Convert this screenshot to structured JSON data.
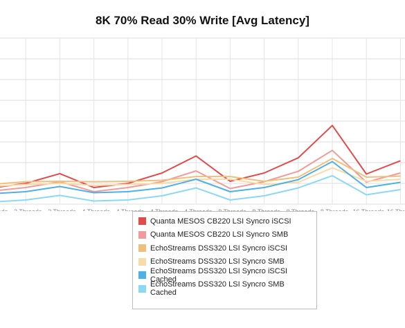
{
  "chart_data": {
    "type": "line",
    "title": "8K 70% Read 30% Write [Avg Latency]",
    "xlabel": "",
    "ylabel": "",
    "grid": true,
    "legend_position": "bottom",
    "categories": [
      [
        "1 Threads",
        "16 Queue"
      ],
      [
        "2 Threads",
        "8 Queue"
      ],
      [
        "2 Threads",
        "16 Queue"
      ],
      [
        "4 Threads",
        "2 Queue"
      ],
      [
        "4 Threads",
        "4 Queue"
      ],
      [
        "4 Threads",
        "8 Queue"
      ],
      [
        "4 Threads",
        "16 Queue"
      ],
      [
        "8 Threads",
        "2 Queue"
      ],
      [
        "8 Threads",
        "4 Queue"
      ],
      [
        "8 Threads",
        "8 Queue"
      ],
      [
        "8 Threads",
        "16 Queue"
      ],
      [
        "16 Threads",
        "2 Queue"
      ],
      [
        "16 Threads",
        "4 Queue"
      ]
    ],
    "ylim": [
      0,
      8
    ],
    "series": [
      {
        "name": "Quanta MESOS CB220 LSI Syncro iSCSI",
        "color": "#e34a4a",
        "values": [
          0.78,
          1.0,
          1.47,
          0.8,
          1.0,
          1.5,
          2.32,
          1.1,
          1.5,
          2.23,
          3.79,
          1.45,
          2.09
        ]
      },
      {
        "name": "Quanta MESOS CB220 LSI Syncro SMB",
        "color": "#f29a9a",
        "values": [
          0.63,
          0.8,
          1.08,
          0.6,
          0.8,
          1.08,
          1.6,
          0.75,
          1.08,
          1.58,
          2.59,
          1.06,
          1.5
        ]
      },
      {
        "name": "EchoStreams DSS320 LSI Syncro iSCSI",
        "color": "#eec07a",
        "values": [
          0.95,
          1.08,
          1.1,
          1.08,
          1.1,
          1.15,
          1.33,
          1.33,
          1.1,
          1.3,
          2.2,
          1.3,
          1.35
        ]
      },
      {
        "name": "EchoStreams DSS320 LSI Syncro SMB",
        "color": "#f8dba6",
        "values": [
          0.85,
          0.95,
          1.0,
          0.9,
          0.95,
          1.0,
          1.2,
          1.2,
          0.95,
          1.05,
          1.75,
          1.1,
          1.2
        ]
      },
      {
        "name": "EchoStreams DSS320 LSI Syncro iSCSI Cached",
        "color": "#4fb0e6",
        "values": [
          0.5,
          0.6,
          0.85,
          0.55,
          0.6,
          0.78,
          1.2,
          0.6,
          0.8,
          1.18,
          2.05,
          0.8,
          1.05
        ]
      },
      {
        "name": "EchoStreams DSS320 LSI Syncro SMB Cached",
        "color": "#8ad8f5",
        "values": [
          0.1,
          0.2,
          0.42,
          0.15,
          0.2,
          0.4,
          0.78,
          0.2,
          0.4,
          0.78,
          1.37,
          0.45,
          0.7
        ]
      }
    ]
  }
}
